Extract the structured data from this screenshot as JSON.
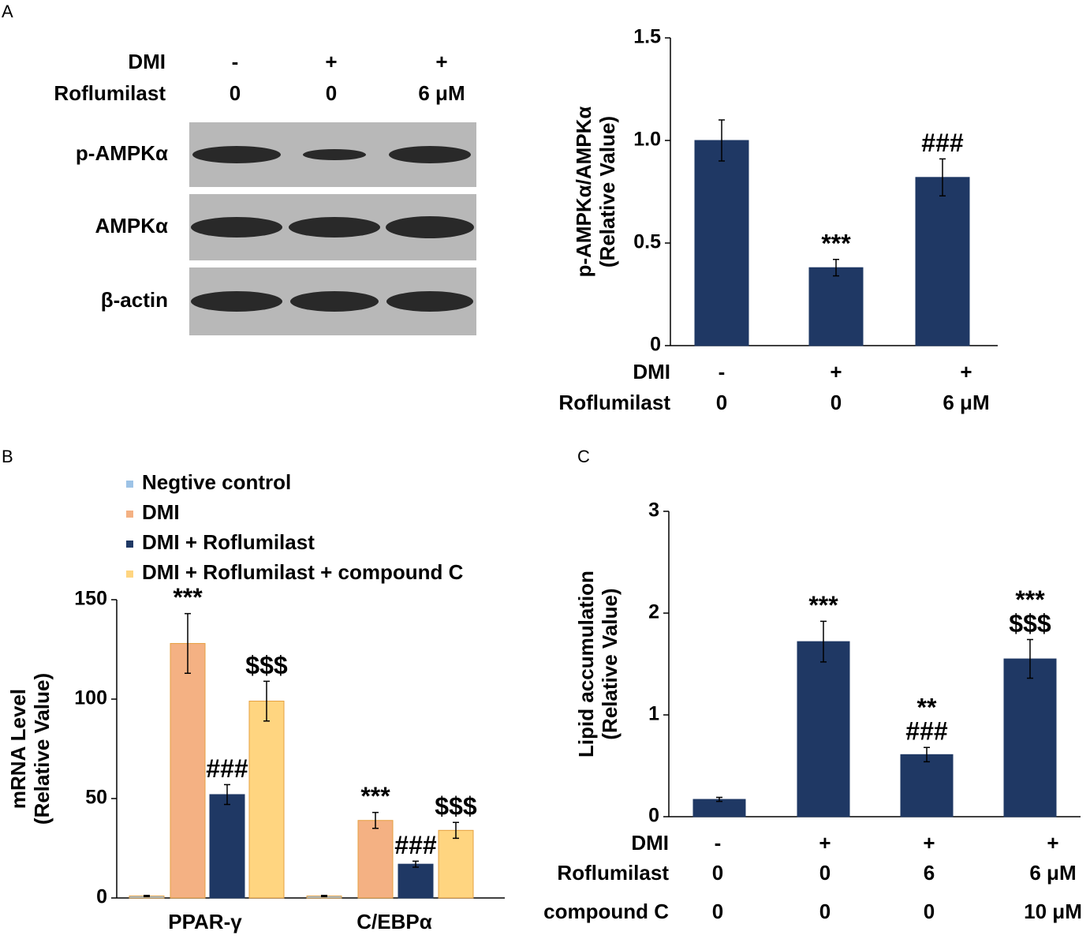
{
  "panel_labels": [
    "A",
    "B",
    "C"
  ],
  "blot": {
    "condition_rows": [
      {
        "label": "DMI",
        "values": [
          "-",
          "+",
          "+"
        ]
      },
      {
        "label": "Roflumilast",
        "values": [
          "0",
          "0",
          "6 μM"
        ]
      }
    ],
    "bands": [
      "p-AMPKα",
      "AMPKα",
      "β-actin"
    ]
  },
  "chart_data": [
    {
      "type": "bar",
      "ylabel": [
        "p-AMPKα/AMPKα",
        "(Relative Value)"
      ],
      "values": [
        1.0,
        0.38,
        0.82
      ],
      "errors": [
        0.1,
        0.04,
        0.09
      ],
      "annotations": [
        null,
        [
          "***"
        ],
        [
          "###"
        ]
      ],
      "color": "#1f3864",
      "ylim": [
        0,
        1.5
      ],
      "yticks": [
        0,
        0.5,
        {
          "value": 1,
          "label": "1.0"
        },
        1.5
      ],
      "condition_rows": [
        {
          "label": "DMI",
          "values": [
            "-",
            "+",
            "+"
          ]
        },
        {
          "label": "Roflumilast",
          "values": [
            "0",
            "0",
            "6 μM"
          ]
        }
      ]
    },
    {
      "type": "grouped-bar",
      "ylabel": [
        "mRNA Level",
        "(Relative Value)"
      ],
      "categories": [
        "PPAR-γ",
        "C/EBPα"
      ],
      "series": [
        {
          "name": "Negtive control",
          "color": "#9dc3e6",
          "values": [
            1,
            1
          ],
          "errors": [
            0.3,
            0.3
          ]
        },
        {
          "name": "DMI",
          "color": "#f4b183",
          "values": [
            128,
            39
          ],
          "errors": [
            15,
            4
          ],
          "annotations": [
            "***",
            "***"
          ]
        },
        {
          "name": "DMI + Roflumilast",
          "color": "#1f3864",
          "values": [
            52,
            17
          ],
          "errors": [
            5,
            1.5
          ],
          "annotations": [
            "###",
            "###"
          ]
        },
        {
          "name": "DMI + Roflumilast + compound C",
          "color": "#ffd580",
          "values": [
            99,
            34
          ],
          "errors": [
            10,
            4
          ],
          "annotations": [
            "$$$",
            "$$$"
          ]
        }
      ],
      "ylim": [
        0,
        150
      ],
      "yticks": [
        0,
        50,
        100,
        150
      ],
      "legend": "top-left"
    },
    {
      "type": "bar",
      "ylabel": [
        "Lipid accumulation",
        "(Relative Value)"
      ],
      "values": [
        0.17,
        1.72,
        0.61,
        1.55
      ],
      "errors": [
        0.02,
        0.2,
        0.07,
        0.19
      ],
      "annotations": [
        null,
        [
          "***"
        ],
        [
          "**",
          "###"
        ],
        [
          "***",
          "$$$"
        ]
      ],
      "color": "#1f3864",
      "ylim": [
        0,
        3
      ],
      "yticks": [
        0,
        1,
        2,
        3
      ],
      "condition_rows": [
        {
          "label": "DMI",
          "values": [
            "-",
            "+",
            "+",
            "+"
          ]
        },
        {
          "label": "Roflumilast",
          "values": [
            "0",
            "0",
            "6",
            "6  μM"
          ]
        },
        {
          "label": "compound C",
          "values": [
            "0",
            "0",
            "0",
            "10 μM"
          ]
        }
      ]
    }
  ]
}
